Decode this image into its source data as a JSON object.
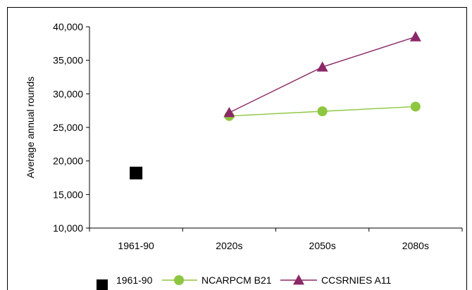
{
  "title_fragment": "",
  "chart_data": {
    "type": "line",
    "categories": [
      "1961-90",
      "2020s",
      "2050s",
      "2080s"
    ],
    "ylabel": "Average annual rounds",
    "xlabel": "",
    "ylim": [
      10000,
      40000
    ],
    "yticks": [
      "10,000",
      "15,000",
      "20,000",
      "25,000",
      "30,000",
      "35,000",
      "40,000"
    ],
    "ytick_values": [
      10000,
      15000,
      20000,
      25000,
      30000,
      35000,
      40000
    ],
    "grid": false,
    "legend_position": "bottom",
    "series": [
      {
        "name": "1961-90",
        "marker": "square",
        "color": "#000000",
        "values": [
          18200,
          null,
          null,
          null
        ]
      },
      {
        "name": "NCARPCM B21",
        "marker": "circle",
        "color": "#8dc63f",
        "values": [
          null,
          26700,
          27400,
          28100
        ]
      },
      {
        "name": "CCSRNIES A11",
        "marker": "triangle",
        "color": "#8b2867",
        "values": [
          null,
          27200,
          34000,
          38500
        ]
      }
    ]
  }
}
